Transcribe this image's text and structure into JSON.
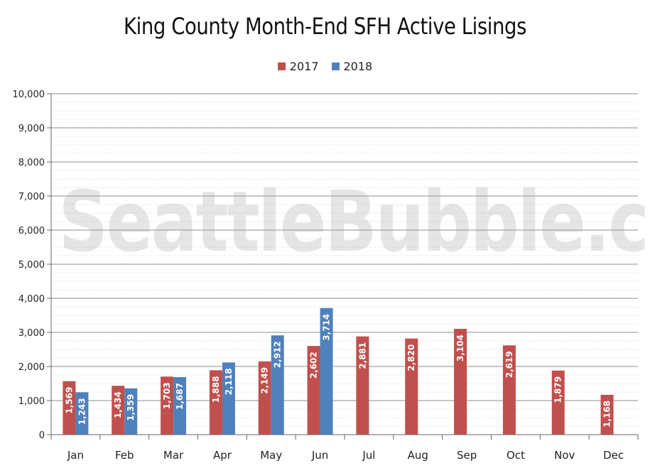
{
  "chart_data": {
    "type": "bar",
    "title": "King County Month-End SFH Active Lisings",
    "xlabel": "",
    "ylabel": "",
    "ylim": [
      0,
      10000
    ],
    "yticks": [
      "0",
      "1,000",
      "2,000",
      "3,000",
      "4,000",
      "5,000",
      "6,000",
      "7,000",
      "8,000",
      "9,000",
      "10,000"
    ],
    "categories": [
      "Jan",
      "Feb",
      "Mar",
      "Apr",
      "May",
      "Jun",
      "Jul",
      "Aug",
      "Sep",
      "Oct",
      "Nov",
      "Dec"
    ],
    "series": [
      {
        "name": "2017",
        "color": "#c0504d",
        "values": [
          1569,
          1434,
          1703,
          1888,
          2149,
          2602,
          2881,
          2820,
          3104,
          2619,
          1879,
          1168
        ],
        "labels": [
          "1,569",
          "1,434",
          "1,703",
          "1,888",
          "2,149",
          "2,602",
          "2,881",
          "2,820",
          "3,104",
          "2,619",
          "1,879",
          "1,168"
        ]
      },
      {
        "name": "2018",
        "color": "#4f81bd",
        "values": [
          1243,
          1359,
          1687,
          2118,
          2912,
          3714,
          null,
          null,
          null,
          null,
          null,
          null
        ],
        "labels": [
          "1,243",
          "1,359",
          "1,687",
          "2,118",
          "2,912",
          "3,714",
          null,
          null,
          null,
          null,
          null,
          null
        ]
      }
    ],
    "legend_position": "top-center",
    "grid": true
  },
  "watermark": "SeattleBubble.com"
}
